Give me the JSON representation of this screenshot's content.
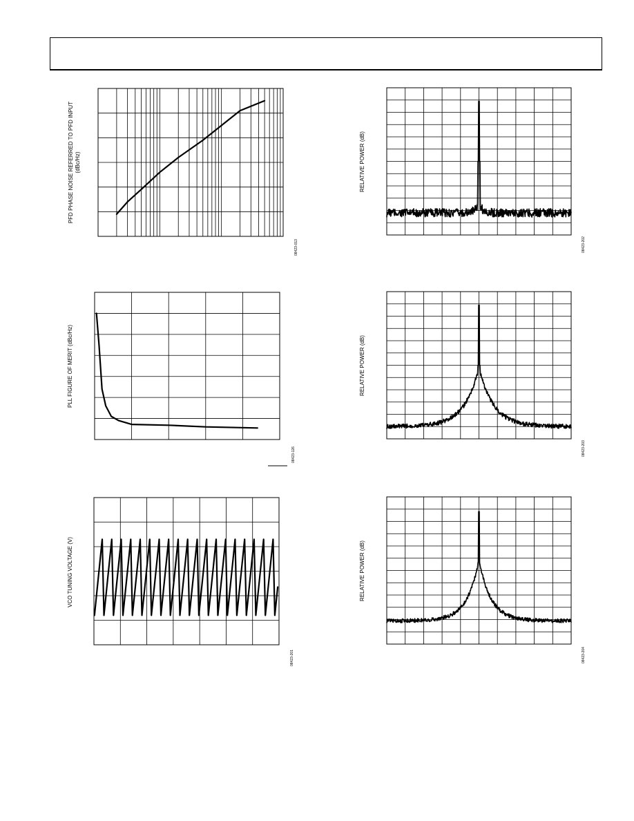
{
  "header": {
    "text": ""
  },
  "chart_data": [
    {
      "id": "pfd-noise",
      "type": "line",
      "ylabel": "PFD PHASE NOISE REFERRED TO PFD INPUT",
      "ylabel_line2": "(dBc/Hz)",
      "code": "08423-013",
      "xscale": "log",
      "xlim": [
        1,
        1000
      ],
      "ylim": [
        0,
        6
      ],
      "grid": true,
      "series": [
        {
          "x": [
            2,
            3,
            5,
            10,
            20,
            50,
            100,
            200,
            500
          ],
          "y": [
            0.9,
            1.4,
            1.9,
            2.6,
            3.2,
            3.9,
            4.5,
            5.1,
            5.5
          ]
        }
      ]
    },
    {
      "id": "pll-fom",
      "type": "line",
      "ylabel": "PLL FIGURE OF MERIT (dBc/Hz)",
      "code": "08423-126",
      "xlim": [
        0,
        5
      ],
      "ylim": [
        0,
        7
      ],
      "grid": true,
      "series": [
        {
          "x": [
            0.05,
            0.12,
            0.2,
            0.3,
            0.45,
            0.65,
            1.0,
            2.0,
            3.0,
            4.4
          ],
          "y": [
            6.0,
            4.5,
            2.4,
            1.6,
            1.1,
            0.9,
            0.72,
            0.68,
            0.6,
            0.55
          ]
        }
      ]
    },
    {
      "id": "vco-tuning",
      "type": "line",
      "ylabel": "VCO TUNING VOLTAGE (V)",
      "code": "08423-201",
      "xlim": [
        0,
        7
      ],
      "ylim": [
        0,
        6
      ],
      "grid": true,
      "sawtooth": {
        "periods": 19.5,
        "low": 1.2,
        "high": 4.3,
        "start_phase": 0.0
      }
    },
    {
      "id": "spectrum-1",
      "type": "line",
      "ylabel": "RELATIVE POWER (dB)",
      "code": "08423-202",
      "xlim": [
        0,
        10
      ],
      "ylim": [
        0,
        12
      ],
      "grid": true,
      "spectrum": {
        "floor": 1.8,
        "noise": 0.35,
        "peak": 10.9,
        "peak_x": 5.0,
        "skirt_height": 0.9,
        "skirt_width": 0.18
      }
    },
    {
      "id": "spectrum-2",
      "type": "line",
      "ylabel": "RELATIVE POWER (dB)",
      "code": "08423-203",
      "xlim": [
        0,
        10
      ],
      "ylim": [
        0,
        12
      ],
      "grid": true,
      "spectrum": {
        "floor": 1.0,
        "noise": 0.18,
        "peak": 10.9,
        "peak_x": 5.0,
        "skirt_height": 4.8,
        "skirt_width": 0.8
      }
    },
    {
      "id": "spectrum-3",
      "type": "line",
      "ylabel": "RELATIVE POWER (dB)",
      "code": "08423-204",
      "xlim": [
        0,
        10
      ],
      "ylim": [
        0,
        12
      ],
      "grid": true,
      "spectrum": {
        "floor": 1.9,
        "noise": 0.16,
        "peak": 10.8,
        "peak_x": 5.0,
        "skirt_height": 5.0,
        "skirt_width": 0.65
      }
    }
  ]
}
